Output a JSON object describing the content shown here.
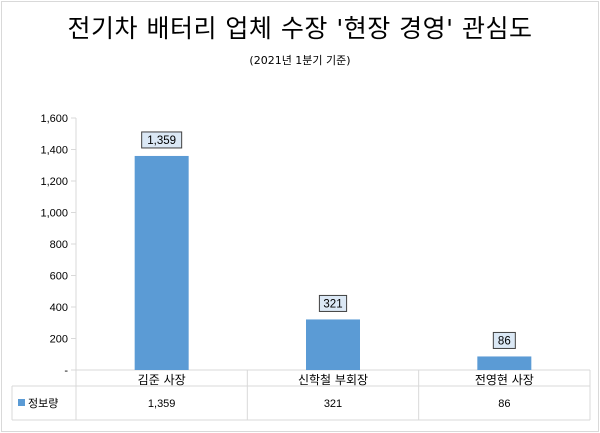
{
  "title": "전기차 배터리 업체 수장 '현장 경영' 관심도",
  "subtitle": "(2021년 1분기 기준)",
  "chart_data": {
    "type": "bar",
    "title": "전기차 배터리 업체 수장 '현장 경영' 관심도",
    "subtitle": "(2021년 1분기 기준)",
    "categories": [
      "김준 사장",
      "신학철 부회장",
      "전영현 사장"
    ],
    "series": [
      {
        "name": "정보량",
        "values": [
          1359,
          321,
          86
        ],
        "color": "#5b9bd5"
      }
    ],
    "ylim": [
      0,
      1600
    ],
    "yticks": [
      0,
      200,
      400,
      600,
      800,
      1000,
      1200,
      1400,
      1600
    ],
    "ytick_labels": [
      "-",
      "200",
      "400",
      "600",
      "800",
      "1,000",
      "1,200",
      "1,400",
      "1,600"
    ],
    "value_labels": [
      "1,359",
      "321",
      "86"
    ],
    "grid": false,
    "data_table": true,
    "legend": "data-table-left"
  }
}
